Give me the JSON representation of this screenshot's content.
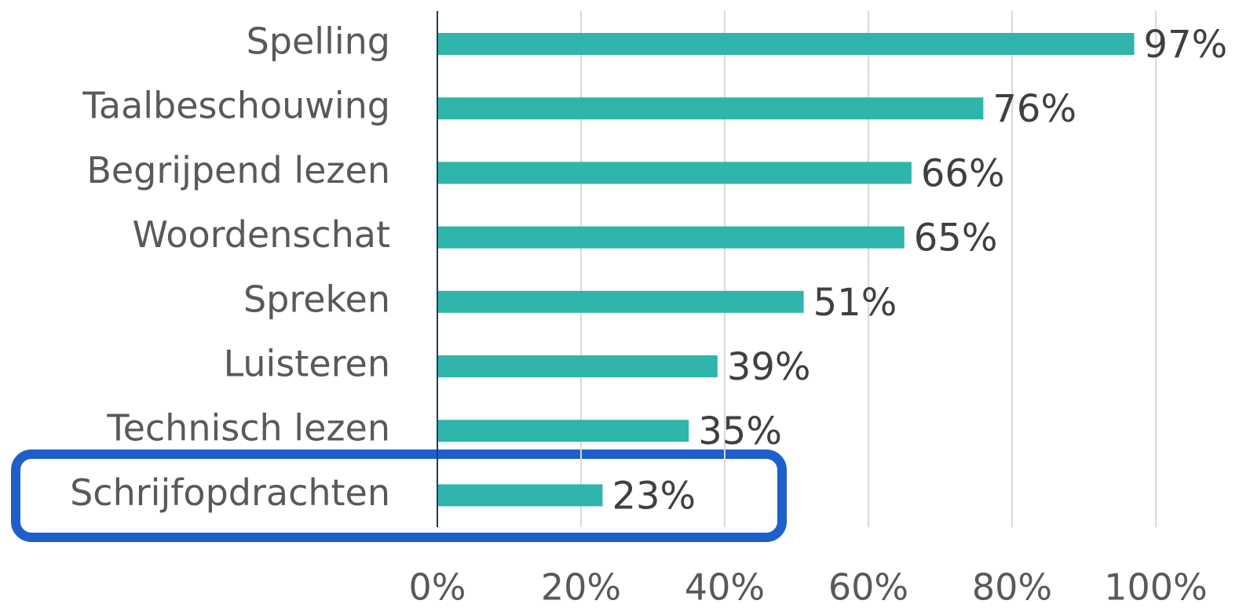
{
  "chart_data": {
    "type": "barh",
    "categories": [
      "Spelling",
      "Taalbeschouwing",
      "Begrijpend lezen",
      "Woordenschat",
      "Spreken",
      "Luisteren",
      "Technisch lezen",
      "Schrijfopdrachten"
    ],
    "values": [
      97,
      76,
      66,
      65,
      51,
      39,
      35,
      23
    ],
    "value_labels": [
      "97%",
      "76%",
      "66%",
      "65%",
      "51%",
      "39%",
      "35%",
      "23%"
    ],
    "color": "#2fb5ab",
    "xlim": [
      0,
      100
    ],
    "xticks": [
      {
        "value": 0,
        "label": "0%"
      },
      {
        "value": 20,
        "label": "20%"
      },
      {
        "value": 40,
        "label": "40%"
      },
      {
        "value": 60,
        "label": "60%"
      },
      {
        "value": 80,
        "label": "80%"
      },
      {
        "value": 100,
        "label": "100%"
      }
    ],
    "grid": true
  }
}
